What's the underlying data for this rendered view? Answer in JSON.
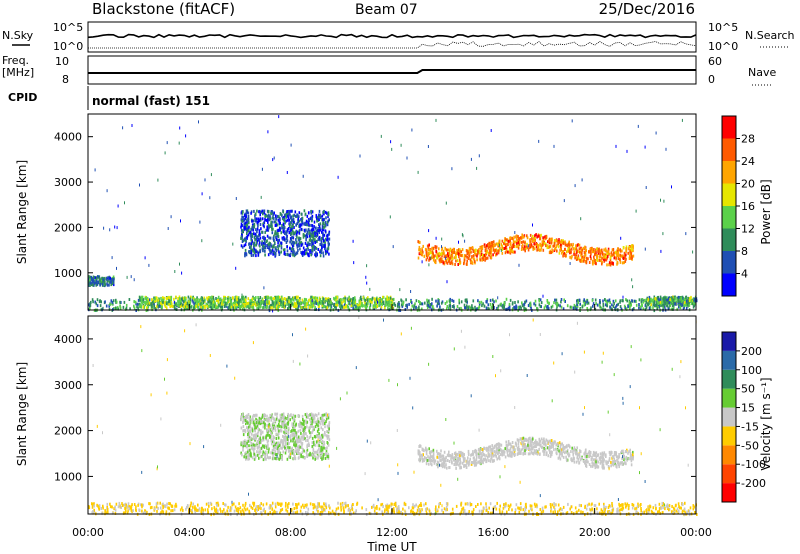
{
  "header": {
    "title": "Blackstone (fitACF)",
    "beam": "Beam 07",
    "date": "25/Dec/2016"
  },
  "aux_panels": {
    "nsky_label": "N.Sky",
    "nsky_ticks": [
      "10^5",
      "10^0"
    ],
    "nsearch_label": "N.Search",
    "freq_label_1": "Freq.",
    "freq_label_2": "[MHz]",
    "freq_ticks": [
      "10",
      "8"
    ],
    "nave_label": "Nave",
    "nave_ticks": [
      "60",
      "0"
    ],
    "cpid_label": "CPID",
    "cpid_value": "normal (fast) 151"
  },
  "colorbars": {
    "power": {
      "label": "Power [dB]",
      "ticks": [
        "28",
        "24",
        "20",
        "16",
        "12",
        "8",
        "4"
      ],
      "colors": [
        "#0000ff",
        "#1f4fb4",
        "#2f8c5a",
        "#5bd14a",
        "#e6e600",
        "#ffa500",
        "#ff5a00",
        "#ff0000"
      ]
    },
    "velocity": {
      "label": "Velocity [m s⁻¹]",
      "ticks": [
        "200",
        "100",
        "50",
        "15",
        "-15",
        "-50",
        "-100",
        "-200"
      ],
      "colors": [
        "#1a1aa8",
        "#2a6aa8",
        "#2f8c5a",
        "#66cc33",
        "#c8c8c8",
        "#ffcc00",
        "#ff8800",
        "#ff4400",
        "#ff0000"
      ]
    }
  },
  "chart_data": [
    {
      "type": "heatmap",
      "title": "Power",
      "ylabel": "Slant Range [km]",
      "xlabel": "Time UT",
      "yticks": [
        "4000",
        "3000",
        "2000",
        "1000"
      ],
      "xticks": [
        "00:00",
        "04:00",
        "08:00",
        "12:00",
        "16:00",
        "20:00",
        "00:00"
      ],
      "ylim": [
        180,
        4500
      ],
      "xlim_hours": [
        0,
        24
      ],
      "colorbar_range": [
        0,
        32
      ],
      "regions": [
        {
          "name": "near-range band",
          "t": [
            0,
            24
          ],
          "r": [
            200,
            450
          ],
          "level": 10
        },
        {
          "name": "morning band",
          "t": [
            2,
            12
          ],
          "r": [
            260,
            500
          ],
          "level": 14
        },
        {
          "name": "evening echo",
          "t": [
            13,
            21.5
          ],
          "r": [
            1100,
            1900
          ],
          "level": 24
        },
        {
          "name": "morning cloud",
          "t": [
            6,
            9.5
          ],
          "r": [
            1400,
            2400
          ],
          "level": 6
        },
        {
          "name": "early cluster",
          "t": [
            0,
            1
          ],
          "r": [
            750,
            950
          ],
          "level": 8
        },
        {
          "name": "late cluster",
          "t": [
            22,
            24
          ],
          "r": [
            300,
            500
          ],
          "level": 12
        }
      ]
    },
    {
      "type": "heatmap",
      "title": "Velocity",
      "ylabel": "Slant Range [km]",
      "xlabel": "Time UT",
      "yticks": [
        "4000",
        "3000",
        "2000",
        "1000"
      ],
      "xticks": [
        "00:00",
        "04:00",
        "08:00",
        "12:00",
        "16:00",
        "20:00",
        "00:00"
      ],
      "ylim": [
        180,
        4500
      ],
      "xlim_hours": [
        0,
        24
      ],
      "colorbar_range": [
        -250,
        250
      ],
      "regions": [
        {
          "name": "near-range band",
          "t": [
            0,
            24
          ],
          "r": [
            200,
            450
          ],
          "level": -40
        },
        {
          "name": "evening echo",
          "t": [
            13,
            21.5
          ],
          "r": [
            1100,
            1900
          ],
          "level": 0
        },
        {
          "name": "morning cloud",
          "t": [
            6,
            9.5
          ],
          "r": [
            1400,
            2400
          ],
          "level": 20
        }
      ]
    }
  ]
}
